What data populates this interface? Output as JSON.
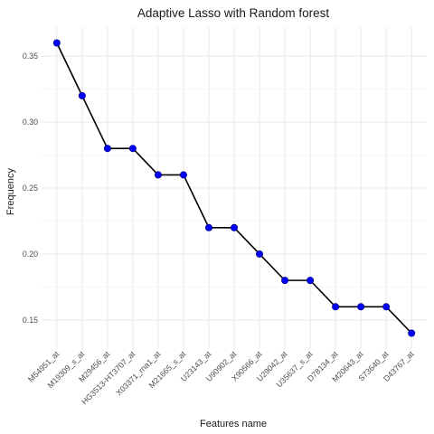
{
  "chart_data": {
    "type": "line",
    "title": "Adaptive Lasso with Random forest",
    "xlabel": "Features name",
    "ylabel": "Frequency",
    "categories": [
      "M54951_at",
      "M19309_s_at",
      "M29456_at",
      "HG3513-HT3707_at",
      "X03371_rna1_at",
      "M21665_s_at",
      "U23143_at",
      "U90902_at",
      "X90566_at",
      "U29042_at",
      "U35637_s_at",
      "D78134_at",
      "M20643_at",
      "S73640_at",
      "D43767_at"
    ],
    "values": [
      0.36,
      0.32,
      0.28,
      0.28,
      0.26,
      0.26,
      0.22,
      0.22,
      0.2,
      0.18,
      0.18,
      0.16,
      0.16,
      0.16,
      0.14
    ],
    "ylim": [
      0.128,
      0.372
    ],
    "yticks": [
      0.15,
      0.2,
      0.25,
      0.3,
      0.35
    ],
    "ytick_labels": [
      "0.15",
      "0.20",
      "0.25",
      "0.30",
      "0.35"
    ],
    "grid": true,
    "colors": {
      "point_fill": "#0000ff",
      "point_stroke": "#00008b",
      "line": "#000000",
      "grid_major": "#ebebeb",
      "grid_minor": "#f5f5f5"
    }
  }
}
